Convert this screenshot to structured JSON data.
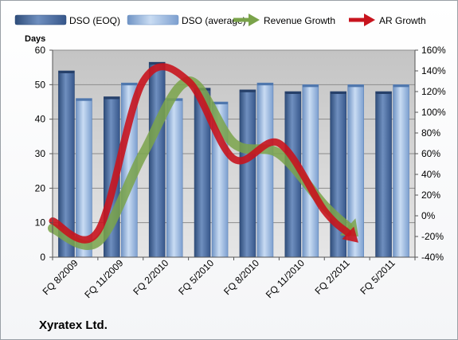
{
  "chart_data": {
    "type": "bar",
    "title": "",
    "company": "Xyratex Ltd.",
    "ylabel_left": "Days",
    "ylim_left": [
      0,
      60
    ],
    "yticks_left": [
      "0",
      "10",
      "20",
      "30",
      "40",
      "50",
      "60"
    ],
    "ylim_right": [
      -40,
      160
    ],
    "yticks_right": [
      "-40%",
      "-20%",
      "0%",
      "20%",
      "40%",
      "60%",
      "80%",
      "100%",
      "120%",
      "140%",
      "160%"
    ],
    "categories": [
      "FQ 8/2009",
      "FQ 11/2009",
      "FQ 2/2010",
      "FQ 5/2010",
      "FQ 8/2010",
      "FQ 11/2010",
      "FQ 2/2011",
      "FQ 5/2011"
    ],
    "legend_position": "top",
    "grid": true,
    "series": [
      {
        "name": "DSO (EOQ)",
        "type": "bar",
        "axis": "left",
        "color": "#4a6a9c",
        "values": [
          54,
          46.5,
          56.5,
          49,
          48.5,
          48,
          48,
          48
        ]
      },
      {
        "name": "DSO (average)",
        "type": "bar",
        "axis": "left",
        "color": "#98b8e0",
        "values": [
          46,
          50.5,
          46,
          45,
          50.5,
          50,
          50,
          50
        ]
      },
      {
        "name": "Revenue Growth",
        "type": "line",
        "axis": "right",
        "color": "#7aa34a",
        "values": [
          -12,
          -25,
          60,
          130,
          70,
          60,
          10,
          -20
        ]
      },
      {
        "name": "AR Growth",
        "type": "line",
        "axis": "right",
        "color": "#c8141e",
        "values": [
          -5,
          -15,
          130,
          130,
          55,
          70,
          5,
          -26
        ]
      }
    ]
  }
}
